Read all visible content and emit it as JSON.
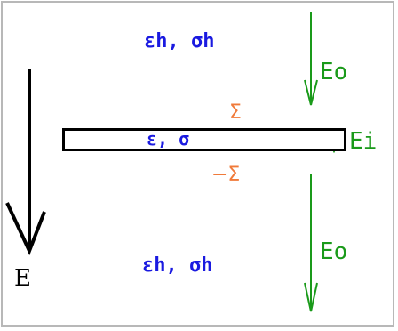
{
  "labels": {
    "host_top": "εh, σh",
    "host_bottom": "εh, σh",
    "slab": "ε, σ",
    "sigma_top": "Σ",
    "sigma_bottom": "−Σ",
    "field_top": "Eo",
    "field_bottom": "Eo",
    "field_inside": "Ei",
    "field_applied": "E"
  },
  "colors": {
    "host": "#1a1ae0",
    "charge": "#f07a3a",
    "field_green": "#1a9a1a",
    "field_black": "#000000"
  }
}
